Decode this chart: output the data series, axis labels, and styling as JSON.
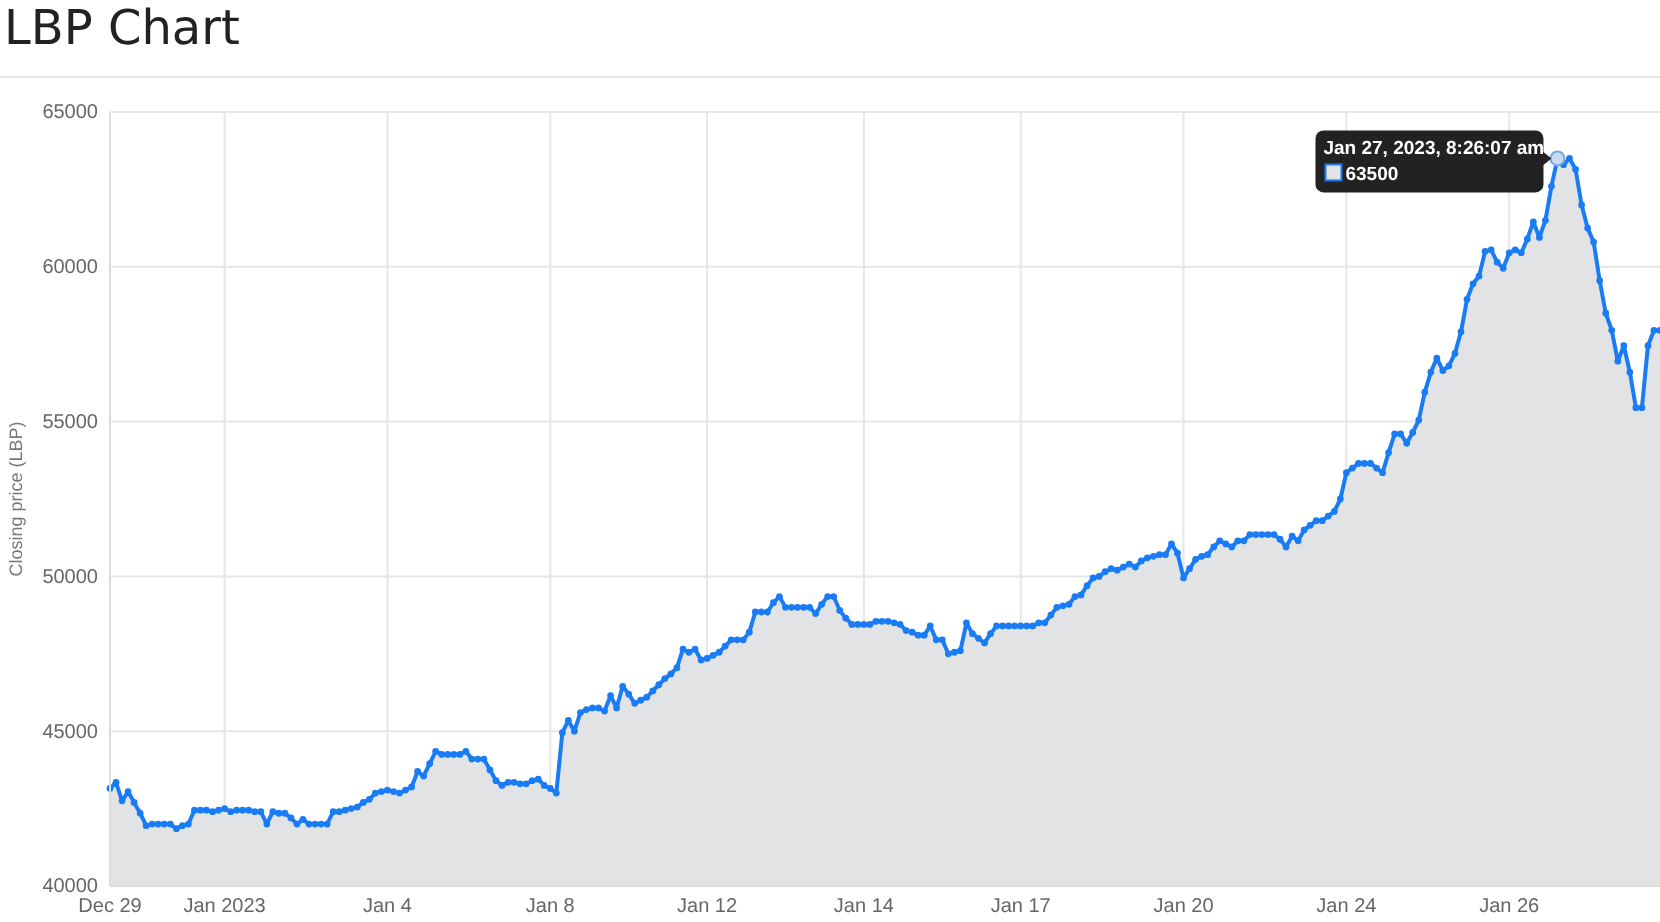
{
  "chart_data": {
    "type": "area",
    "title": "LBP Chart",
    "ylabel": "Closing price (LBP)",
    "categories": [
      "Dec 29",
      null,
      null,
      null,
      null,
      null,
      null,
      null,
      null,
      null,
      null,
      null,
      null,
      null,
      null,
      null,
      null,
      null,
      null,
      "Jan 2023",
      null,
      null,
      null,
      null,
      null,
      null,
      null,
      null,
      null,
      null,
      null,
      null,
      null,
      null,
      null,
      null,
      null,
      null,
      null,
      null,
      null,
      null,
      null,
      null,
      null,
      null,
      "Jan 4",
      null,
      null,
      null,
      null,
      null,
      null,
      null,
      null,
      null,
      null,
      null,
      null,
      null,
      null,
      null,
      null,
      null,
      null,
      null,
      null,
      null,
      null,
      null,
      null,
      null,
      null,
      "Jan 8",
      null,
      null,
      null,
      null,
      null,
      null,
      null,
      null,
      null,
      null,
      null,
      null,
      null,
      null,
      null,
      null,
      null,
      null,
      null,
      null,
      null,
      null,
      null,
      null,
      null,
      "Jan 12",
      null,
      null,
      null,
      null,
      null,
      null,
      null,
      null,
      null,
      null,
      null,
      null,
      null,
      null,
      null,
      null,
      null,
      null,
      null,
      null,
      null,
      null,
      null,
      null,
      null,
      "Jan 14",
      null,
      null,
      null,
      null,
      null,
      null,
      null,
      null,
      null,
      null,
      null,
      null,
      null,
      null,
      null,
      null,
      null,
      null,
      null,
      null,
      null,
      null,
      null,
      null,
      null,
      "Jan 17",
      null,
      null,
      null,
      null,
      null,
      null,
      null,
      null,
      null,
      null,
      null,
      null,
      null,
      null,
      null,
      null,
      null,
      null,
      null,
      null,
      null,
      null,
      null,
      null,
      null,
      null,
      "Jan 20",
      null,
      null,
      null,
      null,
      null,
      null,
      null,
      null,
      null,
      null,
      null,
      null,
      null,
      null,
      null,
      null,
      null,
      null,
      null,
      null,
      null,
      null,
      null,
      null,
      null,
      null,
      "Jan 24",
      null,
      null,
      null,
      null,
      null,
      null,
      null,
      null,
      null,
      null,
      null,
      null,
      null,
      null,
      null,
      null,
      null,
      null,
      null,
      null,
      null,
      null,
      null,
      null,
      null,
      null,
      "Jan 26",
      null,
      null,
      null,
      null,
      null,
      null,
      null,
      null,
      null,
      null,
      null,
      null,
      null,
      null,
      null,
      null,
      null,
      null,
      null,
      null,
      null,
      null,
      null,
      null,
      null
    ],
    "series": [
      {
        "color": "#1a7cf5",
        "values": [
          43150,
          43350,
          42750,
          43050,
          42700,
          42350,
          41950,
          42000,
          42000,
          42000,
          42000,
          41850,
          41950,
          42000,
          42450,
          42450,
          42450,
          42400,
          42450,
          42500,
          42400,
          42450,
          42450,
          42450,
          42400,
          42400,
          42000,
          42400,
          42350,
          42350,
          42200,
          42000,
          42150,
          42000,
          42000,
          42000,
          42000,
          42400,
          42400,
          42450,
          42500,
          42550,
          42700,
          42800,
          43000,
          43050,
          43100,
          43050,
          43000,
          43100,
          43200,
          43700,
          43550,
          43950,
          44350,
          44250,
          44250,
          44250,
          44250,
          44350,
          44100,
          44100,
          44100,
          43750,
          43400,
          43250,
          43350,
          43350,
          43300,
          43300,
          43400,
          43450,
          43250,
          43150,
          43000,
          44950,
          45350,
          45000,
          45600,
          45700,
          45750,
          45750,
          45650,
          46150,
          45750,
          46450,
          46200,
          45900,
          46000,
          46100,
          46300,
          46500,
          46700,
          46850,
          47050,
          47650,
          47550,
          47650,
          47300,
          47350,
          47450,
          47550,
          47750,
          47950,
          47950,
          47950,
          48200,
          48850,
          48850,
          48850,
          49150,
          49350,
          49000,
          49000,
          49000,
          49000,
          49000,
          48800,
          49100,
          49350,
          49350,
          48900,
          48650,
          48450,
          48450,
          48450,
          48450,
          48550,
          48550,
          48550,
          48500,
          48450,
          48250,
          48200,
          48100,
          48100,
          48400,
          47950,
          47950,
          47500,
          47550,
          47600,
          48500,
          48150,
          48000,
          47850,
          48150,
          48400,
          48400,
          48400,
          48400,
          48400,
          48400,
          48400,
          48500,
          48500,
          48750,
          49000,
          49050,
          49100,
          49350,
          49400,
          49700,
          49950,
          50000,
          50150,
          50250,
          50200,
          50300,
          50400,
          50300,
          50500,
          50600,
          50650,
          50700,
          50700,
          51050,
          50750,
          49950,
          50250,
          50550,
          50650,
          50700,
          50950,
          51150,
          51050,
          50950,
          51150,
          51150,
          51350,
          51350,
          51350,
          51350,
          51350,
          51200,
          50950,
          51300,
          51150,
          51500,
          51650,
          51800,
          51800,
          51950,
          52100,
          52500,
          53350,
          53500,
          53650,
          53650,
          53650,
          53500,
          53350,
          54000,
          54600,
          54600,
          54300,
          54650,
          55050,
          55950,
          56600,
          57050,
          56650,
          56800,
          57200,
          57900,
          58950,
          59450,
          59700,
          60500,
          60550,
          60150,
          59950,
          60450,
          60550,
          60450,
          60900,
          61450,
          60950,
          61500,
          62600,
          63500,
          63300,
          63500,
          63150,
          62000,
          61250,
          60800,
          59550,
          58500,
          57950,
          56950,
          57450,
          56600,
          55450,
          55450,
          57450,
          57950,
          57950
        ]
      }
    ],
    "ylim": [
      40000,
      65000
    ],
    "yticks": [
      40000,
      45000,
      50000,
      55000,
      60000,
      65000
    ],
    "grid": true,
    "marker": "circle",
    "line_style": "solid",
    "annotations": [
      "Jan 27, 2023, 8:26:07 am",
      "63500"
    ]
  }
}
